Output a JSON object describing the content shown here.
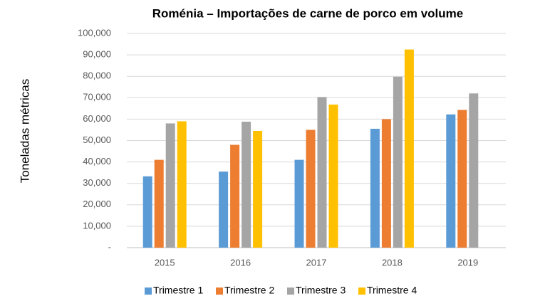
{
  "chart_data": {
    "type": "bar",
    "title": "Roménia – Importações de carne de porco em volume",
    "y_label": "Toneladas métricas",
    "categories": [
      "2015",
      "2016",
      "2017",
      "2018",
      "2019"
    ],
    "series": [
      {
        "name": "Trimestre 1",
        "color": "#5b9bd5",
        "values": [
          33300,
          35500,
          41000,
          55500,
          62200
        ]
      },
      {
        "name": "Trimestre 2",
        "color": "#ed7d31",
        "values": [
          41000,
          48000,
          55000,
          60000,
          64300
        ]
      },
      {
        "name": "Trimestre 3",
        "color": "#a5a5a5",
        "values": [
          58000,
          58800,
          70300,
          79800,
          72000
        ]
      },
      {
        "name": "Trimestre 4",
        "color": "#ffc000",
        "values": [
          59000,
          54500,
          66800,
          92500,
          null
        ]
      }
    ],
    "ylim": [
      0,
      100000
    ],
    "yticks": [
      {
        "value": 0,
        "label": "-"
      },
      {
        "value": 10000,
        "label": "10,000"
      },
      {
        "value": 20000,
        "label": "20,000"
      },
      {
        "value": 30000,
        "label": "30,000"
      },
      {
        "value": 40000,
        "label": "40,000"
      },
      {
        "value": 50000,
        "label": "50,000"
      },
      {
        "value": 60000,
        "label": "60,000"
      },
      {
        "value": 70000,
        "label": "70,000"
      },
      {
        "value": 80000,
        "label": "80,000"
      },
      {
        "value": 90000,
        "label": "90,000"
      },
      {
        "value": 100000,
        "label": "100,000"
      }
    ],
    "grid": true,
    "legend": "bottom"
  }
}
